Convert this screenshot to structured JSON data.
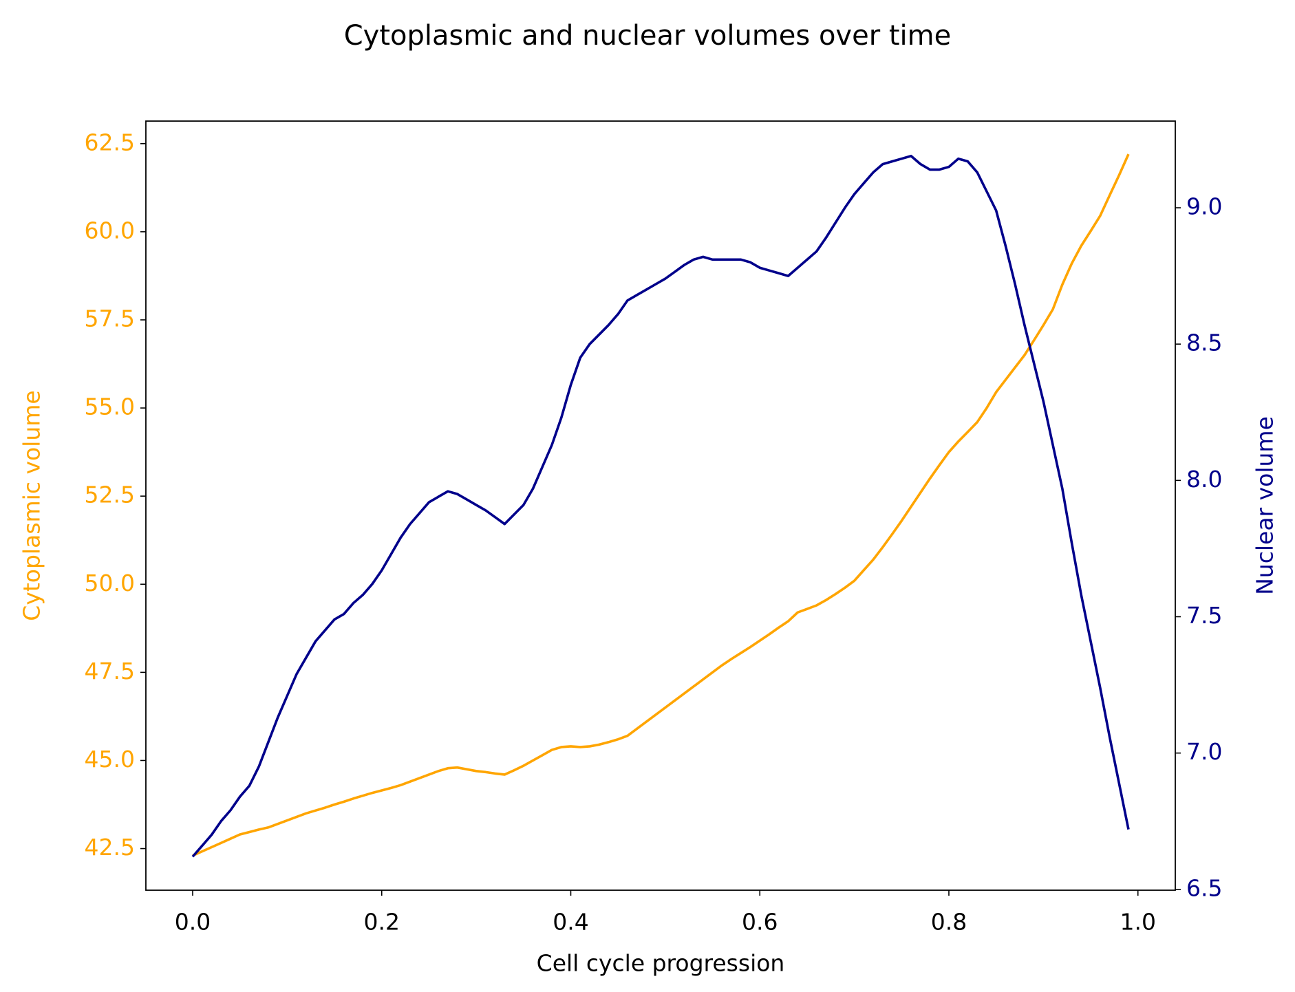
{
  "chart_data": {
    "type": "line",
    "title": "Cytoplasmic and nuclear volumes over time",
    "xlabel": "Cell cycle progression",
    "ylabel": "Cytoplasmic volume",
    "y2label": "Nuclear volume",
    "x": [
      0,
      0.01,
      0.02,
      0.03,
      0.04,
      0.05,
      0.06,
      0.07,
      0.08,
      0.09,
      0.1,
      0.11,
      0.12,
      0.13,
      0.14,
      0.15,
      0.16,
      0.17,
      0.18,
      0.19,
      0.2,
      0.21,
      0.22,
      0.23,
      0.24,
      0.25,
      0.26,
      0.27,
      0.28,
      0.29,
      0.3,
      0.31,
      0.32,
      0.33,
      0.34,
      0.35,
      0.36,
      0.37,
      0.38,
      0.39,
      0.4,
      0.41,
      0.42,
      0.43,
      0.44,
      0.45,
      0.46,
      0.47,
      0.48,
      0.49,
      0.5,
      0.51,
      0.52,
      0.53,
      0.54,
      0.55,
      0.56,
      0.57,
      0.58,
      0.59,
      0.6,
      0.61,
      0.62,
      0.63,
      0.64,
      0.65,
      0.66,
      0.67,
      0.68,
      0.69,
      0.7,
      0.71,
      0.72,
      0.73,
      0.74,
      0.75,
      0.76,
      0.77,
      0.78,
      0.79,
      0.8,
      0.81,
      0.82,
      0.83,
      0.84,
      0.85,
      0.86,
      0.87,
      0.88,
      0.89,
      0.9,
      0.91,
      0.92,
      0.93,
      0.94,
      0.95,
      0.96,
      0.97,
      0.98,
      0.99
    ],
    "series": [
      {
        "name": "Cytoplasmic volume",
        "color": "#ffa500",
        "values": [
          42.3,
          42.42,
          42.54,
          42.66,
          42.78,
          42.9,
          42.97,
          43.04,
          43.1,
          43.2,
          43.3,
          43.4,
          43.5,
          43.58,
          43.66,
          43.75,
          43.83,
          43.92,
          44.0,
          44.08,
          44.15,
          44.22,
          44.3,
          44.4,
          44.5,
          44.6,
          44.7,
          44.78,
          44.8,
          44.75,
          44.7,
          44.67,
          44.63,
          44.6,
          44.72,
          44.85,
          45.0,
          45.15,
          45.3,
          45.38,
          45.4,
          45.38,
          45.4,
          45.45,
          45.52,
          45.6,
          45.7,
          45.9,
          46.1,
          46.3,
          46.5,
          46.7,
          46.9,
          47.1,
          47.3,
          47.5,
          47.7,
          47.88,
          48.05,
          48.22,
          48.4,
          48.58,
          48.77,
          48.95,
          49.2,
          49.3,
          49.4,
          49.55,
          49.72,
          49.9,
          50.1,
          50.4,
          50.7,
          51.05,
          51.42,
          51.8,
          52.2,
          52.6,
          53.0,
          53.38,
          53.75,
          54.05,
          54.32,
          54.6,
          55.0,
          55.45,
          55.8,
          56.15,
          56.5,
          56.92,
          57.35,
          57.8,
          58.5,
          59.1,
          59.6,
          60.02,
          60.45,
          61.03,
          61.6,
          62.2
        ]
      },
      {
        "name": "Nuclear volume",
        "color": "#00008b",
        "axis": "y2",
        "values": [
          6.62,
          6.66,
          6.7,
          6.75,
          6.79,
          6.84,
          6.88,
          6.95,
          7.04,
          7.13,
          7.21,
          7.29,
          7.35,
          7.41,
          7.45,
          7.49,
          7.51,
          7.55,
          7.58,
          7.62,
          7.67,
          7.73,
          7.79,
          7.84,
          7.88,
          7.92,
          7.94,
          7.96,
          7.95,
          7.93,
          7.91,
          7.89,
          7.865,
          7.84,
          7.875,
          7.91,
          7.97,
          8.05,
          8.13,
          8.23,
          8.35,
          8.45,
          8.5,
          8.535,
          8.57,
          8.61,
          8.66,
          8.68,
          8.7,
          8.72,
          8.74,
          8.765,
          8.79,
          8.81,
          8.82,
          8.81,
          8.81,
          8.81,
          8.81,
          8.8,
          8.78,
          8.77,
          8.76,
          8.75,
          8.78,
          8.81,
          8.84,
          8.89,
          8.945,
          9.0,
          9.05,
          9.09,
          9.13,
          9.16,
          9.17,
          9.18,
          9.19,
          9.16,
          9.14,
          9.14,
          9.15,
          9.18,
          9.17,
          9.13,
          9.06,
          8.99,
          8.86,
          8.72,
          8.57,
          8.43,
          8.29,
          8.13,
          7.97,
          7.77,
          7.58,
          7.41,
          7.24,
          7.06,
          6.89,
          6.72
        ]
      }
    ],
    "xlim": [
      -0.0495,
      1.0395
    ],
    "xticks": [
      {
        "value": 0,
        "label": "0.0"
      },
      0.2,
      0.4,
      0.6,
      0.8,
      {
        "value": 1,
        "label": "1.0"
      }
    ],
    "ylim": [
      41.32,
      63.14
    ],
    "yticks": [
      42.5,
      {
        "value": 45,
        "label": "45.0"
      },
      47.5,
      {
        "value": 50,
        "label": "50.0"
      },
      52.5,
      {
        "value": 55,
        "label": "55.0"
      },
      57.5,
      {
        "value": 60,
        "label": "60.0"
      },
      62.5
    ],
    "y2lim": [
      6.497,
      9.318
    ],
    "y2ticks": [
      6.5,
      {
        "value": 7,
        "label": "7.0"
      },
      7.5,
      {
        "value": 8,
        "label": "8.0"
      },
      8.5,
      {
        "value": 9,
        "label": "9.0"
      }
    ],
    "grid": false
  }
}
